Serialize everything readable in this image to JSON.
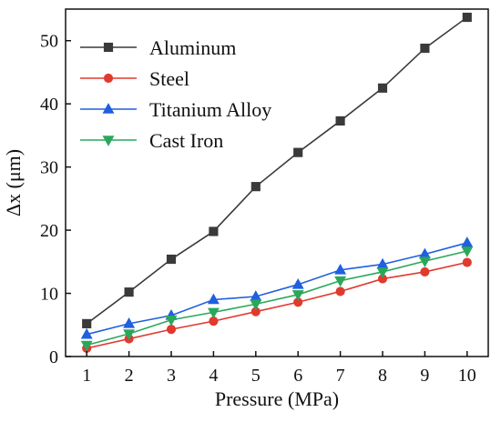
{
  "chart_data": {
    "type": "line",
    "title": "",
    "xlabel": "Pressure (MPa)",
    "ylabel": "Δx (μm)",
    "xlim": [
      0.5,
      10.5
    ],
    "ylim": [
      0,
      55
    ],
    "xticks": [
      1,
      2,
      3,
      4,
      5,
      6,
      7,
      8,
      9,
      10
    ],
    "yticks": [
      0,
      10,
      20,
      30,
      40,
      50
    ],
    "legend_position": "top-left",
    "grid": false,
    "x": [
      1,
      2,
      3,
      4,
      5,
      6,
      7,
      8,
      9,
      10
    ],
    "series": [
      {
        "name": "Aluminum",
        "color": "#3a3a3a",
        "marker": "square",
        "values": [
          5.2,
          10.2,
          15.4,
          19.8,
          26.9,
          32.3,
          37.3,
          42.5,
          48.8,
          53.7
        ]
      },
      {
        "name": "Steel",
        "color": "#e03a2f",
        "marker": "circle",
        "values": [
          1.3,
          2.8,
          4.3,
          5.6,
          7.1,
          8.6,
          10.3,
          12.3,
          13.4,
          14.9
        ]
      },
      {
        "name": "Titanium Alloy",
        "color": "#1f5fe0",
        "marker": "triangle-up",
        "values": [
          3.5,
          5.2,
          6.5,
          9.0,
          9.5,
          11.4,
          13.7,
          14.6,
          16.2,
          18.0
        ]
      },
      {
        "name": "Cast Iron",
        "color": "#2aa85a",
        "marker": "triangle-down",
        "values": [
          1.8,
          3.6,
          5.8,
          7.0,
          8.3,
          9.8,
          12.0,
          13.4,
          15.1,
          16.7
        ]
      }
    ]
  }
}
